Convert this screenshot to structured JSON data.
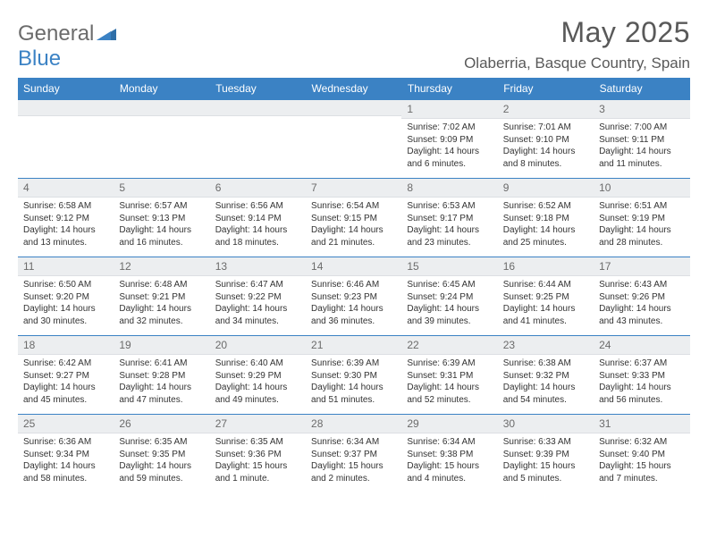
{
  "brand": {
    "name_a": "General",
    "name_b": "Blue"
  },
  "title": "May 2025",
  "location": "Olaberria, Basque Country, Spain",
  "colors": {
    "header_bg": "#3b82c4",
    "header_text": "#ffffff",
    "daynum_bg": "#eceef0",
    "border": "#3b82c4",
    "text": "#333333",
    "title_color": "#595959"
  },
  "day_labels": [
    "Sunday",
    "Monday",
    "Tuesday",
    "Wednesday",
    "Thursday",
    "Friday",
    "Saturday"
  ],
  "weeks": [
    [
      {
        "n": "",
        "sunrise": "",
        "sunset": "",
        "daylight": ""
      },
      {
        "n": "",
        "sunrise": "",
        "sunset": "",
        "daylight": ""
      },
      {
        "n": "",
        "sunrise": "",
        "sunset": "",
        "daylight": ""
      },
      {
        "n": "",
        "sunrise": "",
        "sunset": "",
        "daylight": ""
      },
      {
        "n": "1",
        "sunrise": "Sunrise: 7:02 AM",
        "sunset": "Sunset: 9:09 PM",
        "daylight": "Daylight: 14 hours and 6 minutes."
      },
      {
        "n": "2",
        "sunrise": "Sunrise: 7:01 AM",
        "sunset": "Sunset: 9:10 PM",
        "daylight": "Daylight: 14 hours and 8 minutes."
      },
      {
        "n": "3",
        "sunrise": "Sunrise: 7:00 AM",
        "sunset": "Sunset: 9:11 PM",
        "daylight": "Daylight: 14 hours and 11 minutes."
      }
    ],
    [
      {
        "n": "4",
        "sunrise": "Sunrise: 6:58 AM",
        "sunset": "Sunset: 9:12 PM",
        "daylight": "Daylight: 14 hours and 13 minutes."
      },
      {
        "n": "5",
        "sunrise": "Sunrise: 6:57 AM",
        "sunset": "Sunset: 9:13 PM",
        "daylight": "Daylight: 14 hours and 16 minutes."
      },
      {
        "n": "6",
        "sunrise": "Sunrise: 6:56 AM",
        "sunset": "Sunset: 9:14 PM",
        "daylight": "Daylight: 14 hours and 18 minutes."
      },
      {
        "n": "7",
        "sunrise": "Sunrise: 6:54 AM",
        "sunset": "Sunset: 9:15 PM",
        "daylight": "Daylight: 14 hours and 21 minutes."
      },
      {
        "n": "8",
        "sunrise": "Sunrise: 6:53 AM",
        "sunset": "Sunset: 9:17 PM",
        "daylight": "Daylight: 14 hours and 23 minutes."
      },
      {
        "n": "9",
        "sunrise": "Sunrise: 6:52 AM",
        "sunset": "Sunset: 9:18 PM",
        "daylight": "Daylight: 14 hours and 25 minutes."
      },
      {
        "n": "10",
        "sunrise": "Sunrise: 6:51 AM",
        "sunset": "Sunset: 9:19 PM",
        "daylight": "Daylight: 14 hours and 28 minutes."
      }
    ],
    [
      {
        "n": "11",
        "sunrise": "Sunrise: 6:50 AM",
        "sunset": "Sunset: 9:20 PM",
        "daylight": "Daylight: 14 hours and 30 minutes."
      },
      {
        "n": "12",
        "sunrise": "Sunrise: 6:48 AM",
        "sunset": "Sunset: 9:21 PM",
        "daylight": "Daylight: 14 hours and 32 minutes."
      },
      {
        "n": "13",
        "sunrise": "Sunrise: 6:47 AM",
        "sunset": "Sunset: 9:22 PM",
        "daylight": "Daylight: 14 hours and 34 minutes."
      },
      {
        "n": "14",
        "sunrise": "Sunrise: 6:46 AM",
        "sunset": "Sunset: 9:23 PM",
        "daylight": "Daylight: 14 hours and 36 minutes."
      },
      {
        "n": "15",
        "sunrise": "Sunrise: 6:45 AM",
        "sunset": "Sunset: 9:24 PM",
        "daylight": "Daylight: 14 hours and 39 minutes."
      },
      {
        "n": "16",
        "sunrise": "Sunrise: 6:44 AM",
        "sunset": "Sunset: 9:25 PM",
        "daylight": "Daylight: 14 hours and 41 minutes."
      },
      {
        "n": "17",
        "sunrise": "Sunrise: 6:43 AM",
        "sunset": "Sunset: 9:26 PM",
        "daylight": "Daylight: 14 hours and 43 minutes."
      }
    ],
    [
      {
        "n": "18",
        "sunrise": "Sunrise: 6:42 AM",
        "sunset": "Sunset: 9:27 PM",
        "daylight": "Daylight: 14 hours and 45 minutes."
      },
      {
        "n": "19",
        "sunrise": "Sunrise: 6:41 AM",
        "sunset": "Sunset: 9:28 PM",
        "daylight": "Daylight: 14 hours and 47 minutes."
      },
      {
        "n": "20",
        "sunrise": "Sunrise: 6:40 AM",
        "sunset": "Sunset: 9:29 PM",
        "daylight": "Daylight: 14 hours and 49 minutes."
      },
      {
        "n": "21",
        "sunrise": "Sunrise: 6:39 AM",
        "sunset": "Sunset: 9:30 PM",
        "daylight": "Daylight: 14 hours and 51 minutes."
      },
      {
        "n": "22",
        "sunrise": "Sunrise: 6:39 AM",
        "sunset": "Sunset: 9:31 PM",
        "daylight": "Daylight: 14 hours and 52 minutes."
      },
      {
        "n": "23",
        "sunrise": "Sunrise: 6:38 AM",
        "sunset": "Sunset: 9:32 PM",
        "daylight": "Daylight: 14 hours and 54 minutes."
      },
      {
        "n": "24",
        "sunrise": "Sunrise: 6:37 AM",
        "sunset": "Sunset: 9:33 PM",
        "daylight": "Daylight: 14 hours and 56 minutes."
      }
    ],
    [
      {
        "n": "25",
        "sunrise": "Sunrise: 6:36 AM",
        "sunset": "Sunset: 9:34 PM",
        "daylight": "Daylight: 14 hours and 58 minutes."
      },
      {
        "n": "26",
        "sunrise": "Sunrise: 6:35 AM",
        "sunset": "Sunset: 9:35 PM",
        "daylight": "Daylight: 14 hours and 59 minutes."
      },
      {
        "n": "27",
        "sunrise": "Sunrise: 6:35 AM",
        "sunset": "Sunset: 9:36 PM",
        "daylight": "Daylight: 15 hours and 1 minute."
      },
      {
        "n": "28",
        "sunrise": "Sunrise: 6:34 AM",
        "sunset": "Sunset: 9:37 PM",
        "daylight": "Daylight: 15 hours and 2 minutes."
      },
      {
        "n": "29",
        "sunrise": "Sunrise: 6:34 AM",
        "sunset": "Sunset: 9:38 PM",
        "daylight": "Daylight: 15 hours and 4 minutes."
      },
      {
        "n": "30",
        "sunrise": "Sunrise: 6:33 AM",
        "sunset": "Sunset: 9:39 PM",
        "daylight": "Daylight: 15 hours and 5 minutes."
      },
      {
        "n": "31",
        "sunrise": "Sunrise: 6:32 AM",
        "sunset": "Sunset: 9:40 PM",
        "daylight": "Daylight: 15 hours and 7 minutes."
      }
    ]
  ]
}
